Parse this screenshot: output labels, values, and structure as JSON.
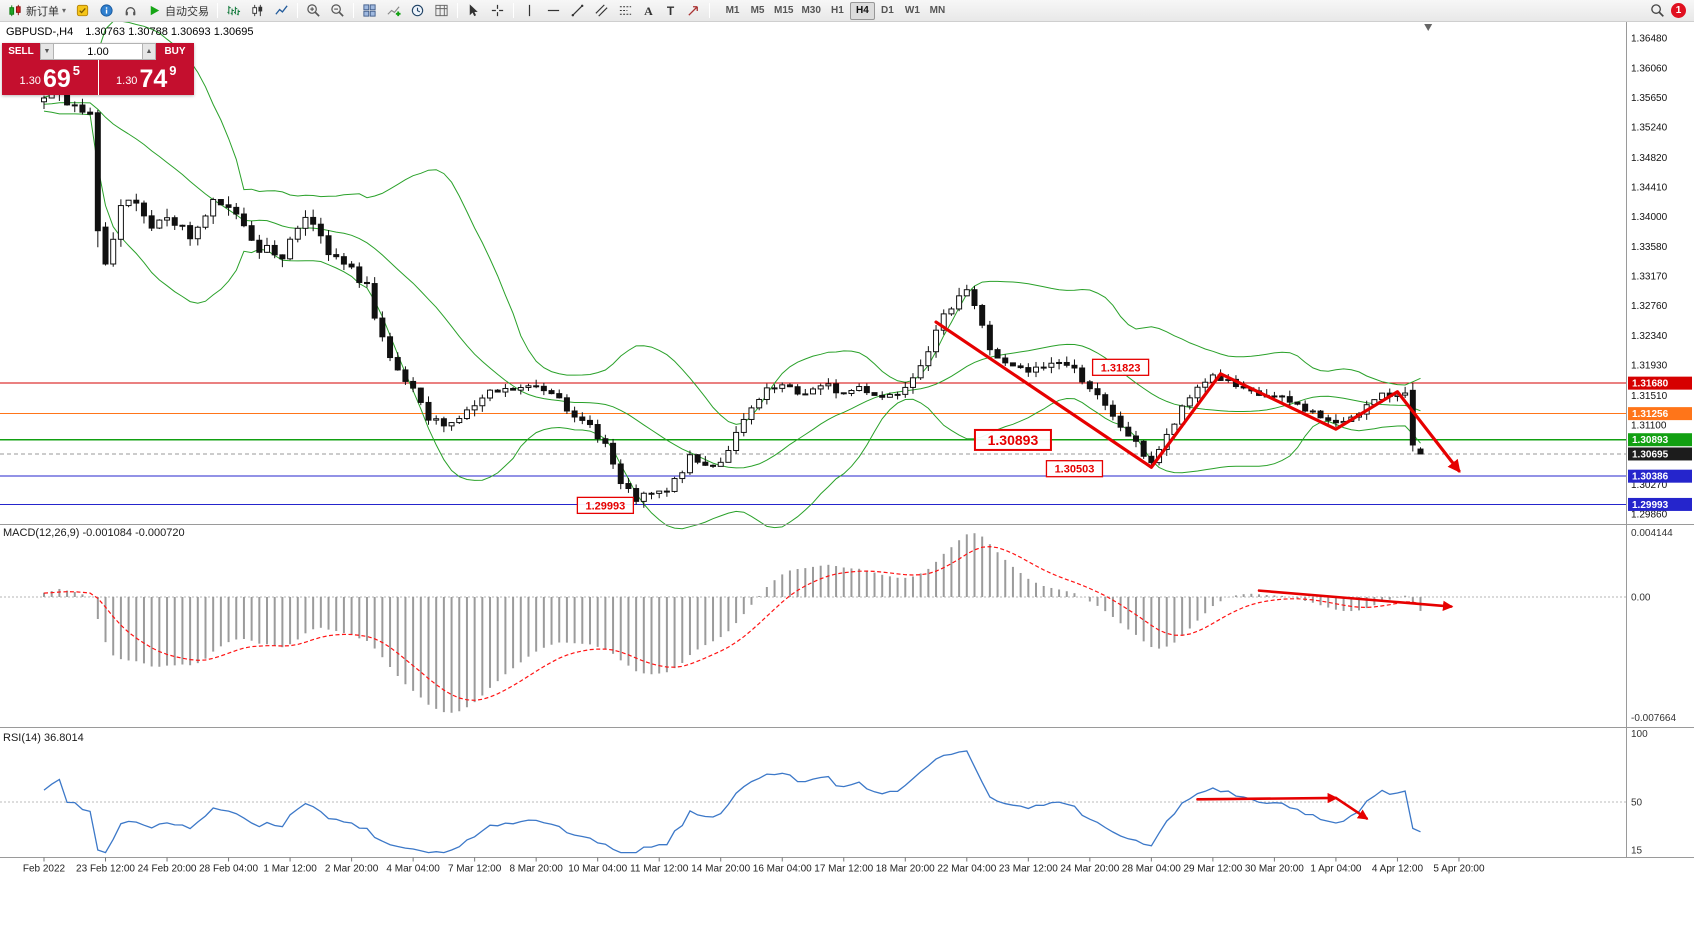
{
  "toolbar": {
    "new_order": "新订单",
    "autotrading": "自动交易",
    "timeframes": [
      "M1",
      "M5",
      "M15",
      "M30",
      "H1",
      "H4",
      "D1",
      "W1",
      "MN"
    ],
    "active_timeframe": "H4",
    "notification_count": "1"
  },
  "chart": {
    "symbol_period": "GBPUSD-,H4",
    "ohlc": "1.30763 1.30788 1.30693 1.30695",
    "one_click": {
      "sell_label": "SELL",
      "buy_label": "BUY",
      "lot": "1.00",
      "sell_price_small": "1.30",
      "sell_price_big": "69",
      "sell_price_sup": "5",
      "buy_price_small": "1.30",
      "buy_price_big": "74",
      "buy_price_sup": "9"
    }
  },
  "price_axis": {
    "ticks": [
      "1.36480",
      "1.36060",
      "1.35650",
      "1.35240",
      "1.34820",
      "1.34410",
      "1.34000",
      "1.33580",
      "1.33170",
      "1.32760",
      "1.32340",
      "1.31930",
      "1.31510",
      "1.31100",
      "1.30270",
      "1.29860"
    ],
    "badges": [
      {
        "text": "1.31680",
        "price": 1.3168,
        "bg": "#d60000"
      },
      {
        "text": "1.31256",
        "price": 1.31256,
        "bg": "#ff7519"
      },
      {
        "text": "1.30893",
        "price": 1.30893,
        "bg": "#12a012"
      },
      {
        "text": "1.30695",
        "price": 1.30695,
        "bg": "#1c1c1c"
      },
      {
        "text": "1.30386",
        "price": 1.30386,
        "bg": "#2525cc"
      },
      {
        "text": "1.29993",
        "price": 1.29993,
        "bg": "#2525cc"
      }
    ]
  },
  "levels": [
    {
      "price": 1.3168,
      "color": "#d60000",
      "dash": ""
    },
    {
      "price": 1.31256,
      "color": "#ff7519",
      "dash": ""
    },
    {
      "price": 1.30893,
      "color": "#12a012",
      "dash": ""
    },
    {
      "price": 1.30695,
      "color": "#9a9a9a",
      "dash": "4 3"
    },
    {
      "price": 1.30386,
      "color": "#2525cc",
      "dash": ""
    },
    {
      "price": 1.29993,
      "color": "#2525cc",
      "dash": ""
    }
  ],
  "macd": {
    "label": "MACD(12,26,9) -0.001084 -0.000720",
    "axis": [
      "0.004144",
      "0.00",
      "-0.007664"
    ],
    "max": 0.004144,
    "min": -0.007664
  },
  "rsi": {
    "label": "RSI(14) 36.8014",
    "axis": [
      "100",
      "50",
      "15"
    ]
  },
  "time_axis": [
    "Feb 2022",
    "23 Feb 12:00",
    "24 Feb 20:00",
    "28 Feb 04:00",
    "1 Mar 12:00",
    "2 Mar 20:00",
    "4 Mar 04:00",
    "7 Mar 12:00",
    "8 Mar 20:00",
    "10 Mar 04:00",
    "11 Mar 12:00",
    "14 Mar 20:00",
    "16 Mar 04:00",
    "17 Mar 12:00",
    "18 Mar 20:00",
    "22 Mar 04:00",
    "23 Mar 12:00",
    "24 Mar 20:00",
    "28 Mar 04:00",
    "29 Mar 12:00",
    "30 Mar 20:00",
    "1 Apr 04:00",
    "4 Apr 12:00",
    "5 Apr 20:00"
  ],
  "chart_data": {
    "type": "candlestick",
    "symbol": "GBPUSD",
    "timeframe": "H4",
    "candle_count": 180,
    "seed": 7,
    "price_range": {
      "top": 1.3648,
      "bottom": 1.2986
    },
    "current_price": 1.30695,
    "colors": {
      "bollinger": "#2aa12a",
      "annotation": "#e60000",
      "up": "#ffffff",
      "down": "#111111",
      "macd_hist": "#9b9b9b",
      "macd_signal": "#ff1414",
      "rsi_line": "#3c78c8"
    },
    "indicators": {
      "bollinger": {
        "period": 20,
        "deviation": 2
      },
      "macd": {
        "fast": 12,
        "slow": 26,
        "signal": 9
      },
      "rsi": {
        "period": 14
      }
    },
    "anchors": [
      [
        -25,
        1.3552
      ],
      [
        -20,
        1.356
      ],
      [
        -15,
        1.355
      ],
      [
        -10,
        1.3561
      ],
      [
        -6,
        1.3554
      ],
      [
        -3,
        1.3559
      ],
      [
        0,
        1.3568
      ],
      [
        2,
        1.3576
      ],
      [
        4,
        1.3548
      ],
      [
        6,
        1.354
      ],
      [
        7,
        1.3382
      ],
      [
        8,
        1.3326
      ],
      [
        9,
        1.3366
      ],
      [
        10,
        1.3408
      ],
      [
        12,
        1.3426
      ],
      [
        14,
        1.3386
      ],
      [
        16,
        1.3406
      ],
      [
        19,
        1.3371
      ],
      [
        22,
        1.3416
      ],
      [
        25,
        1.3406
      ],
      [
        28,
        1.3356
      ],
      [
        31,
        1.3346
      ],
      [
        34,
        1.3406
      ],
      [
        37,
        1.3346
      ],
      [
        39,
        1.3331
      ],
      [
        42,
        1.3306
      ],
      [
        43,
        1.3256
      ],
      [
        45,
        1.3196
      ],
      [
        48,
        1.3156
      ],
      [
        50,
        1.3116
      ],
      [
        53,
        1.3113
      ],
      [
        56,
        1.3136
      ],
      [
        58,
        1.3153
      ],
      [
        61,
        1.3159
      ],
      [
        64,
        1.3163
      ],
      [
        67,
        1.3153
      ],
      [
        69,
        1.3116
      ],
      [
        71,
        1.3109
      ],
      [
        73,
        1.3083
      ],
      [
        75,
        1.3026
      ],
      [
        77,
        1.3006
      ],
      [
        79,
        1.3013
      ],
      [
        81,
        1.3016
      ],
      [
        84,
        1.3063
      ],
      [
        86,
        1.3053
      ],
      [
        88,
        1.3059
      ],
      [
        90,
        1.3096
      ],
      [
        92,
        1.3131
      ],
      [
        94,
        1.3156
      ],
      [
        96,
        1.3163
      ],
      [
        98,
        1.3153
      ],
      [
        100,
        1.3159
      ],
      [
        102,
        1.3163
      ],
      [
        104,
        1.3153
      ],
      [
        106,
        1.3163
      ],
      [
        109,
        1.3149
      ],
      [
        111,
        1.3156
      ],
      [
        113,
        1.3179
      ],
      [
        115,
        1.3216
      ],
      [
        117,
        1.3259
      ],
      [
        119,
        1.3293
      ],
      [
        120,
        1.3299
      ],
      [
        121,
        1.3276
      ],
      [
        123,
        1.3216
      ],
      [
        125,
        1.3193
      ],
      [
        128,
        1.3183
      ],
      [
        130,
        1.3191
      ],
      [
        132,
        1.3199
      ],
      [
        134,
        1.3186
      ],
      [
        136,
        1.3163
      ],
      [
        139,
        1.3119
      ],
      [
        141,
        1.3096
      ],
      [
        143,
        1.3069
      ],
      [
        144,
        1.3059
      ],
      [
        146,
        1.3093
      ],
      [
        148,
        1.3131
      ],
      [
        150,
        1.3163
      ],
      [
        152,
        1.3179
      ],
      [
        154,
        1.3169
      ],
      [
        156,
        1.3156
      ],
      [
        158,
        1.3151
      ],
      [
        160,
        1.3148
      ],
      [
        162,
        1.3141
      ],
      [
        164,
        1.3133
      ],
      [
        166,
        1.3121
      ],
      [
        168,
        1.3109
      ],
      [
        170,
        1.3123
      ],
      [
        172,
        1.3136
      ],
      [
        174,
        1.3149
      ],
      [
        176,
        1.3154
      ],
      [
        177,
        1.3159
      ],
      [
        178,
        1.3082
      ],
      [
        179,
        1.30695
      ]
    ],
    "overrides": [
      {
        "idx": 7,
        "o": 1.3544,
        "c": 1.338,
        "l": 1.3357
      },
      {
        "idx": 77,
        "l": 1.29993
      },
      {
        "idx": 119,
        "h": 1.33005
      },
      {
        "idx": 144,
        "l": 1.30503
      },
      {
        "idx": 152,
        "h": 1.31823
      },
      {
        "idx": 178,
        "o": 1.3158,
        "h": 1.3168,
        "l": 1.3073,
        "c": 1.3082
      },
      {
        "idx": 179,
        "o": 1.30763,
        "h": 1.30788,
        "l": 1.30693,
        "c": 1.30695
      }
    ],
    "annotations": {
      "trend": [
        [
          116,
          1.3253
        ],
        [
          144,
          1.3051
        ],
        [
          153,
          1.3181
        ],
        [
          168,
          1.3104
        ],
        [
          176,
          1.3156
        ],
        [
          184,
          1.3046
        ]
      ],
      "labels": [
        {
          "text": "1.31823",
          "idx": 140,
          "price": 1.319,
          "large": false
        },
        {
          "text": "1.30893",
          "idx": 126,
          "price": 1.3089,
          "large": true
        },
        {
          "text": "1.30503",
          "idx": 134,
          "price": 1.3049,
          "large": false
        },
        {
          "text": "1.29993",
          "idx": 73,
          "price": 1.2998,
          "large": false
        }
      ],
      "macd_arrow": [
        [
          158,
          0.0004
        ],
        [
          183,
          -0.0006
        ]
      ],
      "rsi_arrows": [
        [
          [
            150,
            52
          ],
          [
            168,
            53
          ]
        ],
        [
          [
            168,
            53
          ],
          [
            172,
            38
          ]
        ]
      ]
    }
  }
}
